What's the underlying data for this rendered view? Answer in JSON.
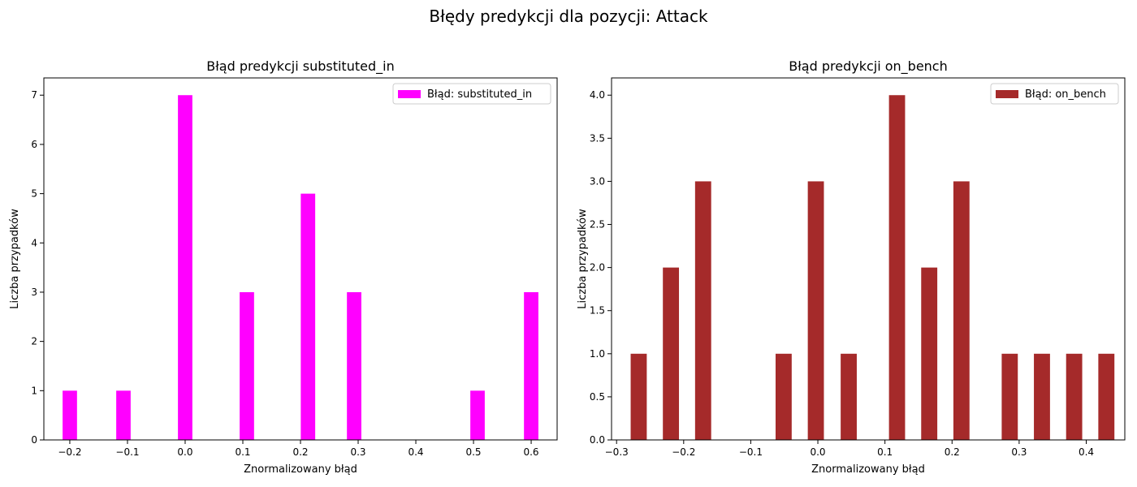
{
  "figure": {
    "title": "Błędy predykcji dla pozycji: Attack"
  },
  "chart_data": [
    {
      "type": "bar",
      "title": "Błąd predykcji substituted_in",
      "xlabel": "Znormalizowany błąd",
      "ylabel": "Liczba przypadków",
      "legend": "Błąd: substituted_in",
      "legend_position": "upper right",
      "color": "#ff00ff",
      "xlim": [
        -0.245,
        0.645
      ],
      "ylim": [
        0,
        7.35
      ],
      "bin_width": 0.025,
      "xticks": [
        -0.2,
        -0.1,
        0.0,
        0.1,
        0.2,
        0.3,
        0.4,
        0.5,
        0.6
      ],
      "xtick_labels": [
        "−0.2",
        "−0.1",
        "0.0",
        "0.1",
        "0.2",
        "0.3",
        "0.4",
        "0.5",
        "0.6"
      ],
      "yticks": [
        0,
        1,
        2,
        3,
        4,
        5,
        6,
        7
      ],
      "ytick_labels": [
        "0",
        "1",
        "2",
        "3",
        "4",
        "5",
        "6",
        "7"
      ],
      "x": [
        -0.2,
        -0.107,
        0.0,
        0.107,
        0.213,
        0.293,
        0.507,
        0.6
      ],
      "values": [
        1,
        1,
        7,
        3,
        5,
        3,
        1,
        3
      ],
      "grid": false
    },
    {
      "type": "bar",
      "title": "Błąd predykcji on_bench",
      "xlabel": "Znormalizowany błąd",
      "ylabel": "Liczba przypadków",
      "legend": "Błąd: on_bench",
      "legend_position": "upper right",
      "color": "#a52a2a",
      "xlim": [
        -0.3075,
        0.4575
      ],
      "ylim": [
        0,
        4.2
      ],
      "bin_width": 0.024,
      "xticks": [
        -0.3,
        -0.2,
        -0.1,
        0.0,
        0.1,
        0.2,
        0.3,
        0.4
      ],
      "xtick_labels": [
        "−0.3",
        "−0.2",
        "−0.1",
        "0.0",
        "0.1",
        "0.2",
        "0.3",
        "0.4"
      ],
      "yticks": [
        0,
        0.5,
        1,
        1.5,
        2,
        2.5,
        3,
        3.5,
        4
      ],
      "ytick_labels": [
        "0.0",
        "0.5",
        "1.0",
        "1.5",
        "2.0",
        "2.5",
        "3.0",
        "3.5",
        "4.0"
      ],
      "x": [
        -0.267,
        -0.219,
        -0.171,
        -0.051,
        -0.003,
        0.046,
        0.118,
        0.166,
        0.214,
        0.286,
        0.334,
        0.382,
        0.43
      ],
      "values": [
        1,
        2,
        3,
        1,
        3,
        1,
        4,
        2,
        3,
        1,
        1,
        1,
        1
      ],
      "grid": false
    }
  ]
}
